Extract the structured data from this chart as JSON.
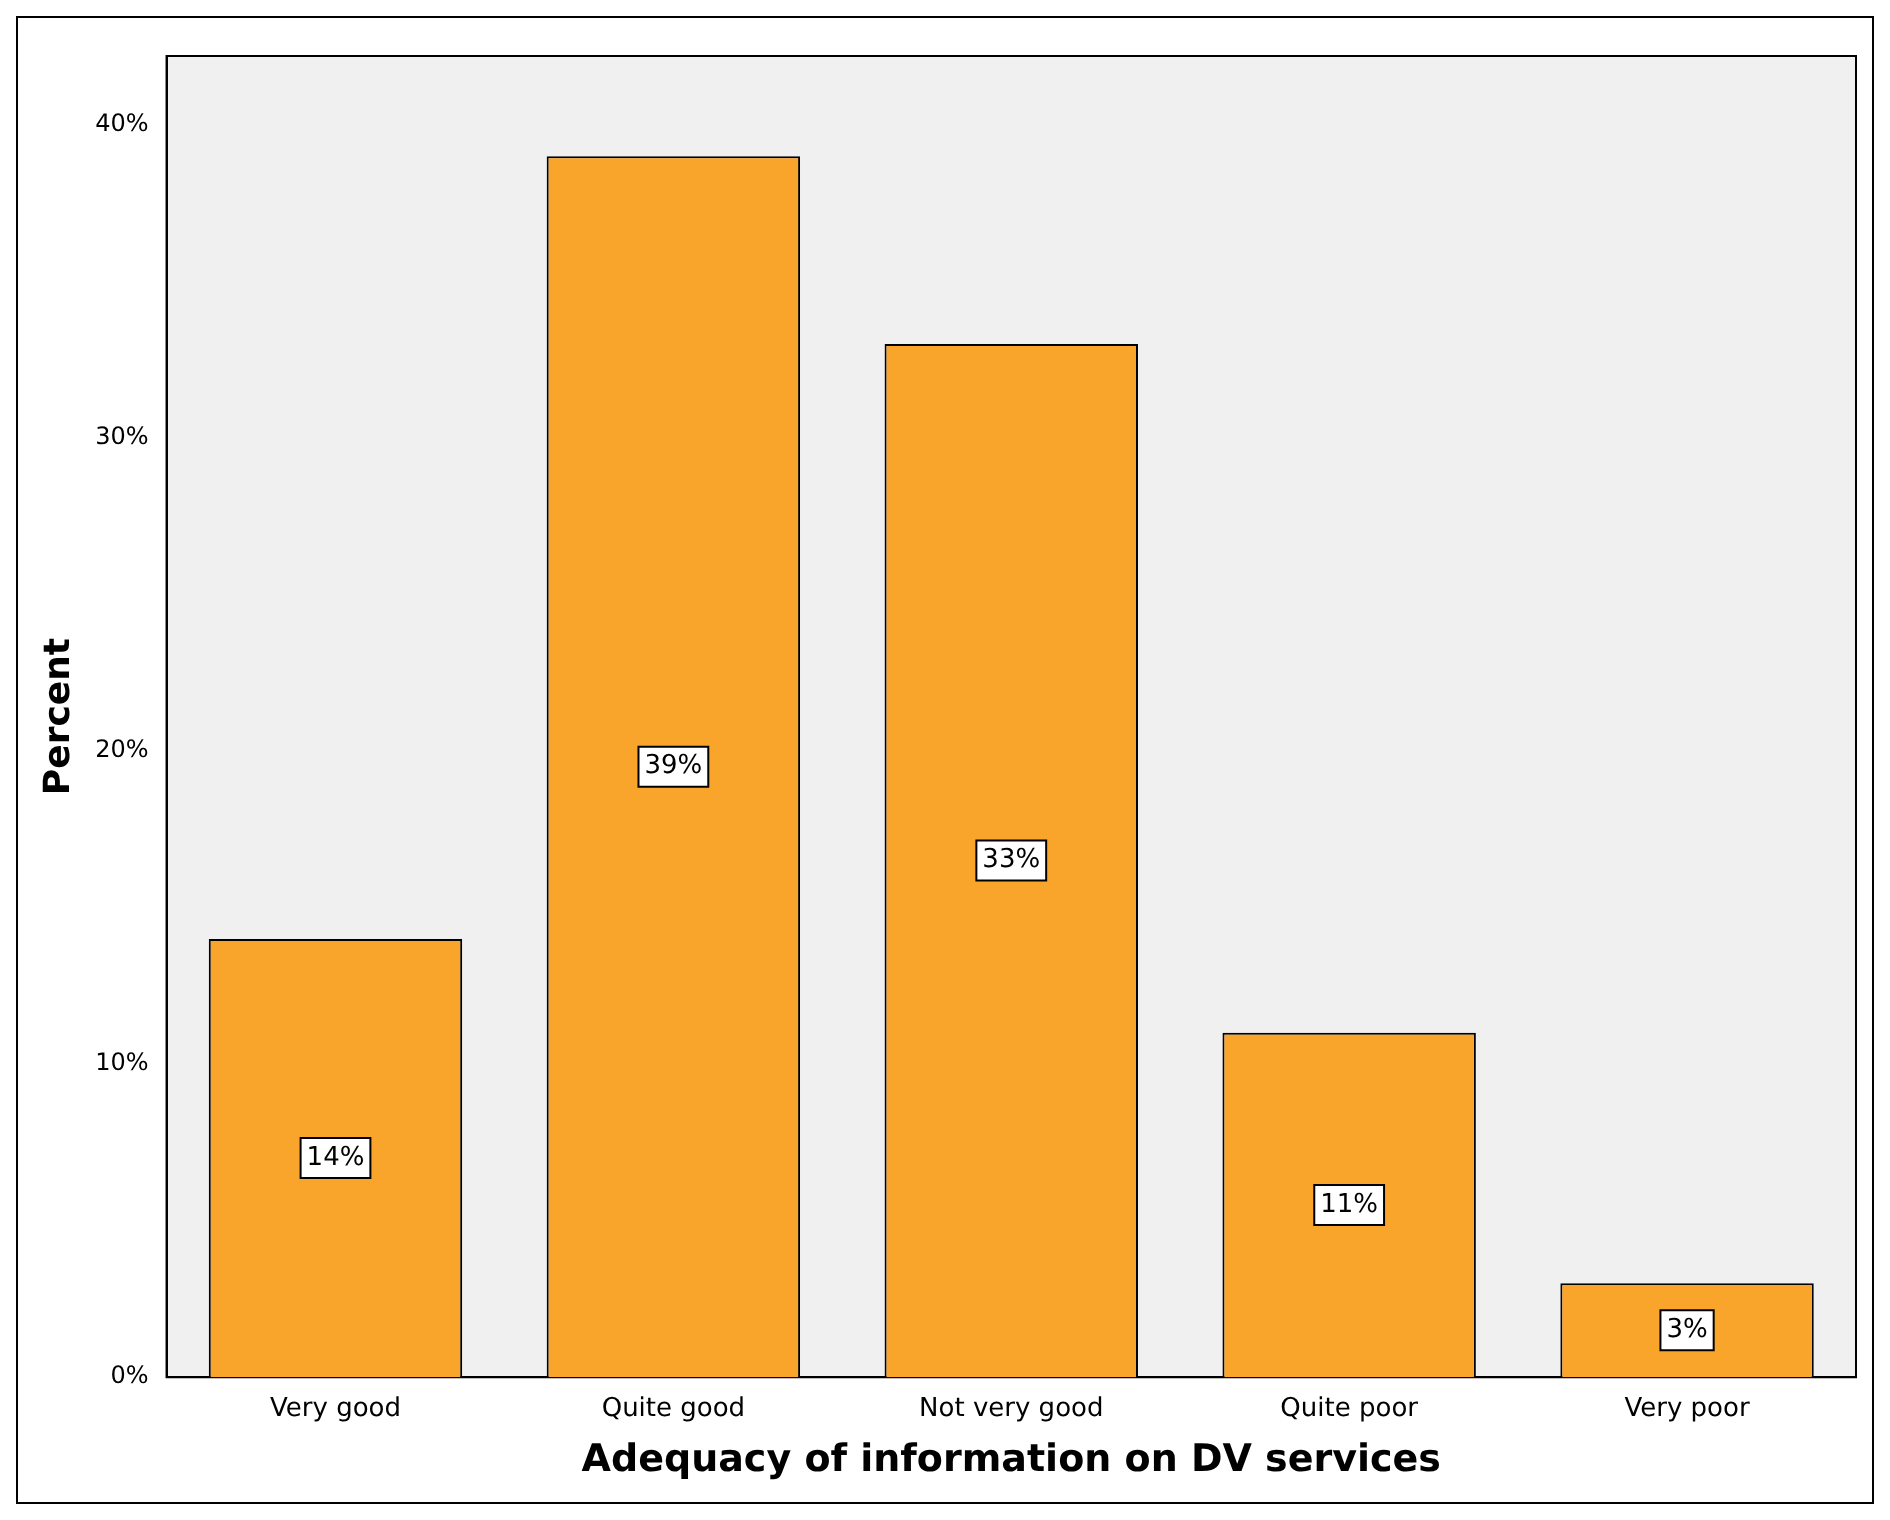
{
  "chart_data": {
    "type": "bar",
    "xlabel": "Adequacy of information on DV services",
    "ylabel": "Percent",
    "categories": [
      "Very good",
      "Quite good",
      "Not very good",
      "Quite poor",
      "Very poor"
    ],
    "values": [
      14,
      39,
      33,
      11,
      3
    ],
    "value_labels": [
      "14%",
      "39%",
      "33%",
      "11%",
      "3%"
    ],
    "color": "#f9a52c",
    "ylim": [
      0,
      42.2
    ],
    "yticks": [
      {
        "value": 0,
        "label": "0%"
      },
      {
        "value": 10,
        "label": "10%"
      },
      {
        "value": 20,
        "label": "20%"
      },
      {
        "value": 30,
        "label": "30%"
      },
      {
        "value": 40,
        "label": "40%"
      }
    ],
    "grid": false,
    "legend": false
  }
}
